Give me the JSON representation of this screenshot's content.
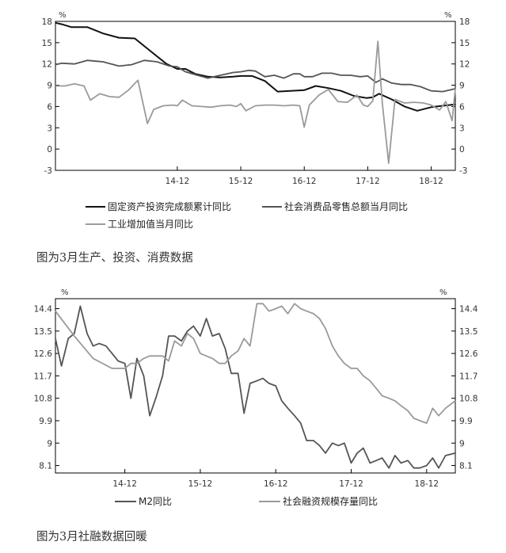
{
  "charts": [
    {
      "caption": "图为3月生产、投资、消费数据",
      "chart_data": {
        "type": "line",
        "unit_left": "%",
        "unit_right": "%",
        "yticks": [
          18,
          15,
          12,
          9,
          6,
          3,
          0,
          -3
        ],
        "ylim": [
          -3,
          18
        ],
        "xlim": [
          2013.0,
          2019.3
        ],
        "xticks": [
          {
            "label": "14-12",
            "x": 2014.92
          },
          {
            "label": "15-12",
            "x": 2015.92
          },
          {
            "label": "16-12",
            "x": 2016.92
          },
          {
            "label": "17-12",
            "x": 2017.92
          },
          {
            "label": "18-12",
            "x": 2018.92
          }
        ],
        "legend": [
          "固定资产投资完成额累计同比",
          "社会消费品零售总额当月同比",
          "工业增加值当月同比"
        ],
        "series": [
          {
            "name": "固定资产投资完成额累计同比",
            "color": "#111111",
            "x": [
              2013.0,
              2013.1,
              2013.25,
              2013.5,
              2013.75,
              2014.0,
              2014.25,
              2014.5,
              2014.75,
              2014.92,
              2015.05,
              2015.2,
              2015.4,
              2015.6,
              2015.8,
              2015.92,
              2016.1,
              2016.3,
              2016.5,
              2016.7,
              2016.92,
              2017.1,
              2017.3,
              2017.5,
              2017.7,
              2017.9,
              2018.0,
              2018.1,
              2018.3,
              2018.5,
              2018.7,
              2018.92,
              2019.1,
              2019.3
            ],
            "y": [
              17.8,
              17.6,
              17.2,
              17.2,
              16.3,
              15.7,
              15.6,
              13.8,
              12.0,
              11.3,
              11.3,
              10.6,
              10.2,
              10.1,
              10.2,
              10.3,
              10.3,
              9.6,
              8.1,
              8.2,
              8.3,
              8.9,
              8.6,
              8.2,
              7.5,
              7.2,
              7.3,
              7.8,
              7.0,
              6.0,
              5.4,
              5.9,
              6.1,
              6.3
            ]
          },
          {
            "name": "社会消费品零售总额当月同比",
            "color": "#555555",
            "x": [
              2013.0,
              2013.1,
              2013.3,
              2013.5,
              2013.75,
              2014.0,
              2014.2,
              2014.4,
              2014.6,
              2014.8,
              2014.92,
              2015.05,
              2015.2,
              2015.4,
              2015.6,
              2015.8,
              2015.92,
              2016.05,
              2016.15,
              2016.3,
              2016.45,
              2016.6,
              2016.75,
              2016.85,
              2016.92,
              2017.05,
              2017.2,
              2017.35,
              2017.5,
              2017.65,
              2017.8,
              2017.92,
              2018.05,
              2018.15,
              2018.3,
              2018.45,
              2018.6,
              2018.75,
              2018.92,
              2019.1,
              2019.3
            ],
            "y": [
              11.9,
              12.1,
              12.0,
              12.5,
              12.3,
              11.7,
              11.9,
              12.5,
              12.3,
              11.7,
              11.6,
              10.9,
              10.5,
              10.0,
              10.4,
              10.8,
              10.9,
              11.1,
              11.0,
              10.2,
              10.4,
              10.0,
              10.6,
              10.6,
              10.2,
              10.2,
              10.7,
              10.7,
              10.4,
              10.4,
              10.2,
              10.3,
              9.4,
              9.9,
              9.3,
              9.1,
              9.1,
              8.8,
              8.2,
              8.1,
              8.5
            ]
          },
          {
            "name": "工业增加值当月同比",
            "color": "#9a9a9a",
            "x": [
              2013.0,
              2013.15,
              2013.3,
              2013.45,
              2013.55,
              2013.7,
              2013.85,
              2014.0,
              2014.15,
              2014.3,
              2014.45,
              2014.55,
              2014.7,
              2014.85,
              2014.92,
              2015.0,
              2015.15,
              2015.3,
              2015.45,
              2015.6,
              2015.75,
              2015.85,
              2015.92,
              2016.0,
              2016.15,
              2016.3,
              2016.45,
              2016.6,
              2016.75,
              2016.85,
              2016.92,
              2017.0,
              2017.15,
              2017.3,
              2017.45,
              2017.6,
              2017.75,
              2017.85,
              2017.92,
              2018.0,
              2018.08,
              2018.15,
              2018.25,
              2018.35,
              2018.5,
              2018.65,
              2018.8,
              2018.92,
              2019.05,
              2019.15,
              2019.25,
              2019.3
            ],
            "y": [
              8.9,
              8.9,
              9.2,
              8.9,
              6.9,
              7.8,
              7.4,
              7.3,
              8.3,
              9.7,
              3.6,
              5.6,
              6.1,
              6.2,
              6.1,
              6.9,
              6.1,
              6.0,
              5.9,
              6.1,
              6.2,
              6.0,
              6.4,
              5.4,
              6.1,
              6.2,
              6.2,
              6.1,
              6.2,
              6.1,
              3.1,
              6.2,
              7.6,
              8.4,
              6.7,
              6.6,
              7.6,
              6.2,
              6.0,
              6.8,
              15.2,
              6.5,
              -2.0,
              7.0,
              6.5,
              6.6,
              6.5,
              6.2,
              5.5,
              6.7,
              4.0,
              8.5
            ]
          }
        ]
      }
    },
    {
      "caption": "图为3月社融数据回暖",
      "chart_data": {
        "type": "line",
        "unit_left": "%",
        "unit_right": "%",
        "yticks": [
          14.4,
          13.5,
          12.6,
          11.7,
          10.8,
          9.9,
          9.0,
          8.1
        ],
        "ylim": [
          7.8,
          14.8
        ],
        "xlim": [
          2014.0,
          2019.3
        ],
        "xticks": [
          {
            "label": "14-12",
            "x": 2014.92
          },
          {
            "label": "15-12",
            "x": 2015.92
          },
          {
            "label": "16-12",
            "x": 2016.92
          },
          {
            "label": "17-12",
            "x": 2017.92
          },
          {
            "label": "18-12",
            "x": 2018.92
          }
        ],
        "legend": [
          "M2同比",
          "社会融资规模存量同比"
        ],
        "series": [
          {
            "name": "M2同比",
            "color": "#555555",
            "x": [
              2014.0,
              2014.08,
              2014.17,
              2014.25,
              2014.33,
              2014.42,
              2014.5,
              2014.58,
              2014.67,
              2014.75,
              2014.83,
              2014.92,
              2015.0,
              2015.08,
              2015.17,
              2015.25,
              2015.33,
              2015.42,
              2015.5,
              2015.58,
              2015.67,
              2015.75,
              2015.83,
              2015.92,
              2016.0,
              2016.08,
              2016.17,
              2016.25,
              2016.33,
              2016.42,
              2016.5,
              2016.58,
              2016.67,
              2016.75,
              2016.83,
              2016.92,
              2017.0,
              2017.08,
              2017.17,
              2017.25,
              2017.33,
              2017.42,
              2017.5,
              2017.58,
              2017.67,
              2017.75,
              2017.83,
              2017.92,
              2018.0,
              2018.08,
              2018.17,
              2018.25,
              2018.33,
              2018.42,
              2018.5,
              2018.58,
              2018.67,
              2018.75,
              2018.83,
              2018.92,
              2019.0,
              2019.08,
              2019.17,
              2019.3
            ],
            "y": [
              13.2,
              12.1,
              13.2,
              13.4,
              14.5,
              13.4,
              12.9,
              13.0,
              12.9,
              12.6,
              12.3,
              12.2,
              10.8,
              12.4,
              11.7,
              10.1,
              10.8,
              11.7,
              13.3,
              13.3,
              13.1,
              13.5,
              13.7,
              13.3,
              14.0,
              13.3,
              13.4,
              12.8,
              11.8,
              11.8,
              10.2,
              11.4,
              11.5,
              11.6,
              11.4,
              11.3,
              10.7,
              10.4,
              10.1,
              9.8,
              9.1,
              9.1,
              8.9,
              8.6,
              9.0,
              8.9,
              9.0,
              8.2,
              8.6,
              8.8,
              8.2,
              8.3,
              8.4,
              8.0,
              8.5,
              8.2,
              8.3,
              8.0,
              8.0,
              8.1,
              8.4,
              8.0,
              8.5,
              8.6
            ]
          },
          {
            "name": "社会融资规模存量同比",
            "color": "#9a9a9a",
            "x": [
              2014.0,
              2014.25,
              2014.5,
              2014.75,
              2014.92,
              2015.0,
              2015.08,
              2015.17,
              2015.25,
              2015.33,
              2015.42,
              2015.5,
              2015.58,
              2015.67,
              2015.75,
              2015.83,
              2015.92,
              2016.0,
              2016.08,
              2016.17,
              2016.25,
              2016.33,
              2016.42,
              2016.5,
              2016.58,
              2016.67,
              2016.75,
              2016.83,
              2016.92,
              2017.0,
              2017.08,
              2017.17,
              2017.25,
              2017.33,
              2017.42,
              2017.5,
              2017.58,
              2017.67,
              2017.75,
              2017.83,
              2017.92,
              2018.0,
              2018.08,
              2018.17,
              2018.25,
              2018.33,
              2018.42,
              2018.5,
              2018.58,
              2018.67,
              2018.75,
              2018.83,
              2018.92,
              2019.0,
              2019.08,
              2019.17,
              2019.3
            ],
            "y": [
              14.3,
              13.3,
              12.4,
              12.0,
              12.0,
              12.2,
              12.2,
              12.4,
              12.5,
              12.5,
              12.5,
              12.3,
              13.1,
              12.9,
              13.4,
              13.2,
              12.6,
              12.5,
              12.4,
              12.2,
              12.2,
              12.5,
              12.7,
              13.2,
              12.9,
              14.6,
              14.6,
              14.3,
              14.4,
              14.5,
              14.2,
              14.6,
              14.4,
              14.3,
              14.2,
              14.0,
              13.6,
              12.9,
              12.5,
              12.2,
              12.0,
              12.0,
              11.7,
              11.5,
              11.2,
              10.9,
              10.8,
              10.7,
              10.5,
              10.3,
              10.0,
              9.9,
              9.8,
              10.4,
              10.1,
              10.4,
              10.7
            ]
          }
        ]
      }
    }
  ]
}
